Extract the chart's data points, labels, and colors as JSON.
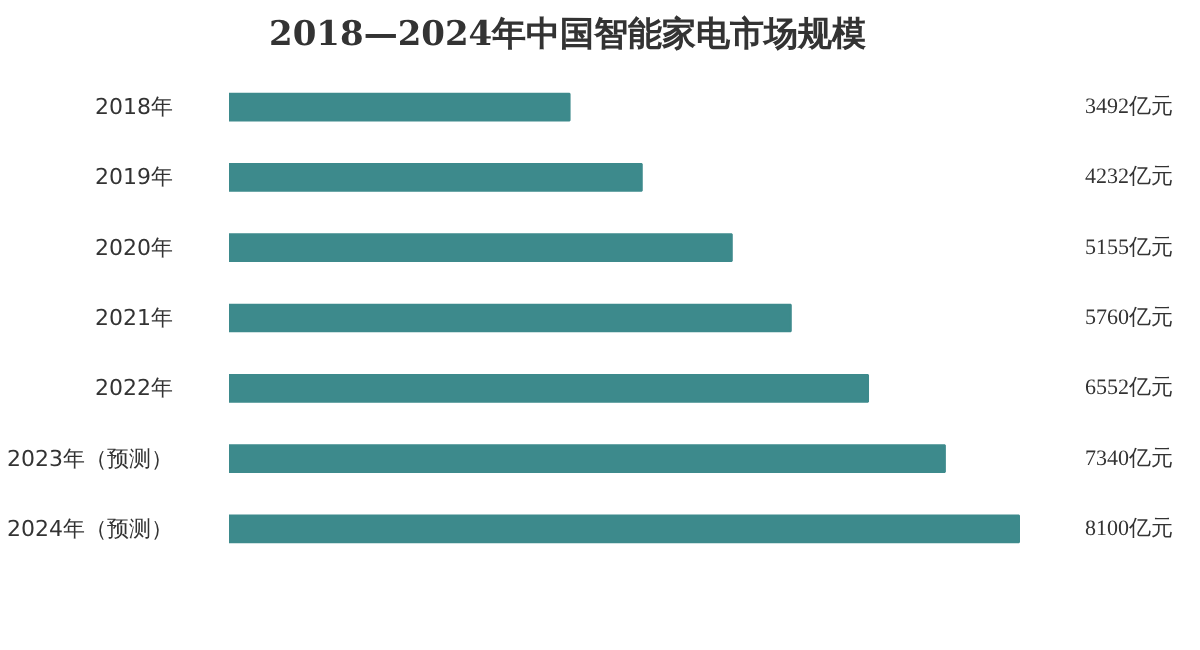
{
  "chart_data": {
    "type": "bar",
    "orientation": "horizontal",
    "title": "2018—2024年中国智能家电市场规模",
    "categories": [
      "2018年",
      "2019年",
      "2020年",
      "2021年",
      "2022年",
      "2023年（预测）",
      "2024年（预测）"
    ],
    "values": [
      3492,
      4232,
      5155,
      5760,
      6552,
      7340,
      8100
    ],
    "value_labels": [
      "3492亿元",
      "4232亿元",
      "5155亿元",
      "5760亿元",
      "6552亿元",
      "7340亿元",
      "8100亿元"
    ],
    "color": "#3d8a8c",
    "tick_labels": "y"
  }
}
